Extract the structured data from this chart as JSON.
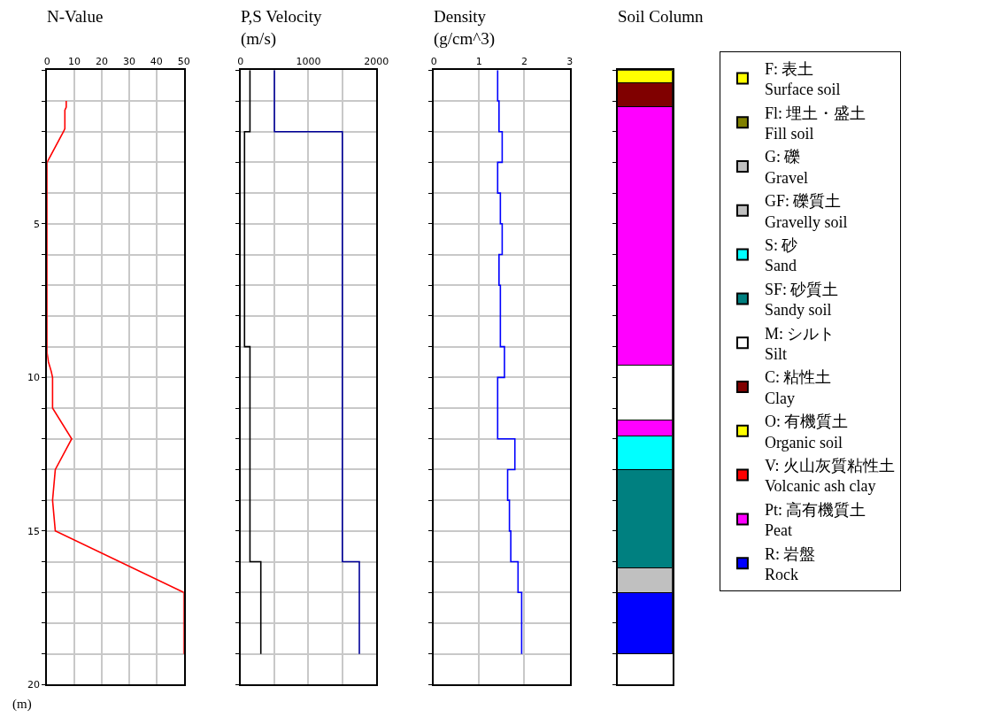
{
  "chart_data": [
    {
      "type": "line",
      "title": "N-Value",
      "ylabel": "(m)",
      "orientation": "horizontal",
      "xlim": [
        0,
        50
      ],
      "xticks": [
        0,
        10,
        20,
        30,
        40,
        50
      ],
      "ylim": [
        20,
        0
      ],
      "yticks": [
        {
          "value": 0,
          "label": null
        },
        {
          "value": 1,
          "label": null
        },
        {
          "value": 2,
          "label": null
        },
        {
          "value": 3,
          "label": null
        },
        {
          "value": 4,
          "label": null
        },
        5,
        {
          "value": 6,
          "label": null
        },
        {
          "value": 7,
          "label": null
        },
        {
          "value": 8,
          "label": null
        },
        {
          "value": 9,
          "label": null
        },
        10,
        {
          "value": 11,
          "label": null
        },
        {
          "value": 12,
          "label": null
        },
        {
          "value": 13,
          "label": null
        },
        {
          "value": 14,
          "label": null
        },
        15,
        {
          "value": 16,
          "label": null
        },
        {
          "value": 17,
          "label": null
        },
        {
          "value": 18,
          "label": null
        },
        {
          "value": 19,
          "label": null
        },
        20
      ],
      "grid": true,
      "series": [
        {
          "color": "#ff0000",
          "x": [
            1,
            1.2,
            1.3,
            1.9,
            2,
            3,
            9.2,
            9.5,
            9.8,
            10,
            11,
            12,
            13,
            14,
            15,
            17,
            19
          ],
          "values": [
            7,
            7,
            6.5,
            6.5,
            6,
            0,
            0,
            0.5,
            1.5,
            2,
            2,
            9,
            3,
            2,
            3,
            50,
            50
          ]
        }
      ]
    },
    {
      "type": "step",
      "title": "P,S Velocity\n(m/s)",
      "orientation": "horizontal",
      "xlim": [
        0,
        2000
      ],
      "xticks": [
        0,
        {
          "value": 500,
          "label": null
        },
        1000,
        {
          "value": 1500,
          "label": null
        },
        2000
      ],
      "ylim": [
        20,
        0
      ],
      "yticks": [
        {
          "value": 0,
          "label": null
        },
        {
          "value": 1,
          "label": null
        },
        {
          "value": 2,
          "label": null
        },
        {
          "value": 3,
          "label": null
        },
        {
          "value": 4,
          "label": null
        },
        {
          "value": 5,
          "label": null
        },
        {
          "value": 6,
          "label": null
        },
        {
          "value": 7,
          "label": null
        },
        {
          "value": 8,
          "label": null
        },
        {
          "value": 9,
          "label": null
        },
        {
          "value": 10,
          "label": null
        },
        {
          "value": 11,
          "label": null
        },
        {
          "value": 12,
          "label": null
        },
        {
          "value": 13,
          "label": null
        },
        {
          "value": 14,
          "label": null
        },
        {
          "value": 15,
          "label": null
        },
        {
          "value": 16,
          "label": null
        },
        {
          "value": 17,
          "label": null
        },
        {
          "value": 18,
          "label": null
        },
        {
          "value": 19,
          "label": null
        },
        {
          "value": 20,
          "label": null
        }
      ],
      "grid": true,
      "tick_labels": "x",
      "series": [
        {
          "color": "#000000",
          "x": [
            0,
            2,
            9,
            16,
            19
          ],
          "values": [
            140,
            60,
            140,
            300,
            300
          ]
        },
        {
          "color": "#000099",
          "x": [
            0,
            2,
            16,
            19
          ],
          "values": [
            500,
            1500,
            1750,
            1750
          ]
        }
      ]
    },
    {
      "type": "step",
      "title": "Density\n(g/cm^3)",
      "orientation": "horizontal",
      "xlim": [
        0,
        3
      ],
      "xticks": [
        0,
        1,
        2,
        3
      ],
      "ylim": [
        20,
        0
      ],
      "yticks": [
        {
          "value": 0,
          "label": null
        },
        {
          "value": 1,
          "label": null
        },
        {
          "value": 2,
          "label": null
        },
        {
          "value": 3,
          "label": null
        },
        {
          "value": 4,
          "label": null
        },
        {
          "value": 5,
          "label": null
        },
        {
          "value": 6,
          "label": null
        },
        {
          "value": 7,
          "label": null
        },
        {
          "value": 8,
          "label": null
        },
        {
          "value": 9,
          "label": null
        },
        {
          "value": 10,
          "label": null
        },
        {
          "value": 11,
          "label": null
        },
        {
          "value": 12,
          "label": null
        },
        {
          "value": 13,
          "label": null
        },
        {
          "value": 14,
          "label": null
        },
        {
          "value": 15,
          "label": null
        },
        {
          "value": 16,
          "label": null
        },
        {
          "value": 17,
          "label": null
        },
        {
          "value": 18,
          "label": null
        },
        {
          "value": 19,
          "label": null
        },
        {
          "value": 20,
          "label": null
        }
      ],
      "grid": true,
      "tick_labels": "x",
      "series": [
        {
          "color": "#0000ff",
          "x": [
            0,
            1,
            2,
            3,
            4,
            5,
            6,
            7,
            8,
            9,
            10,
            12,
            13,
            14,
            15,
            16,
            17,
            19
          ],
          "values": [
            1.41,
            1.44,
            1.51,
            1.41,
            1.47,
            1.51,
            1.44,
            1.47,
            1.47,
            1.56,
            1.41,
            1.79,
            1.63,
            1.67,
            1.7,
            1.86,
            1.94,
            1.94
          ]
        }
      ]
    },
    {
      "type": "bar",
      "title": "Soil Column",
      "stacked": true,
      "categories": [
        null
      ],
      "ylim": [
        20,
        0
      ],
      "yticks": [
        {
          "value": 0,
          "label": null
        },
        {
          "value": 1,
          "label": null
        },
        {
          "value": 2,
          "label": null
        },
        {
          "value": 3,
          "label": null
        },
        {
          "value": 4,
          "label": null
        },
        {
          "value": 5,
          "label": null
        },
        {
          "value": 6,
          "label": null
        },
        {
          "value": 7,
          "label": null
        },
        {
          "value": 8,
          "label": null
        },
        {
          "value": 9,
          "label": null
        },
        {
          "value": 10,
          "label": null
        },
        {
          "value": 11,
          "label": null
        },
        {
          "value": 12,
          "label": null
        },
        {
          "value": 13,
          "label": null
        },
        {
          "value": 14,
          "label": null
        },
        {
          "value": 15,
          "label": null
        },
        {
          "value": 16,
          "label": null
        },
        {
          "value": 17,
          "label": null
        },
        {
          "value": 18,
          "label": null
        },
        {
          "value": 19,
          "label": null
        },
        {
          "value": 20,
          "label": null
        }
      ],
      "tick_labels": false,
      "series": [
        {
          "color": "#ffff00",
          "values": [
            0.4
          ]
        },
        {
          "color": "#800000",
          "values": [
            0.8
          ]
        },
        {
          "color": "#ff00ff",
          "values": [
            8.4
          ]
        },
        {
          "color": "#ffffff",
          "values": [
            1.8
          ]
        },
        {
          "color": "#ff00ff",
          "values": [
            0.5
          ]
        },
        {
          "color": "#00ffff",
          "values": [
            1.1
          ]
        },
        {
          "color": "#008080",
          "values": [
            3.2
          ]
        },
        {
          "color": "#c0c0c0",
          "values": [
            0.8
          ]
        },
        {
          "color": "#0000ff",
          "values": [
            2
          ]
        }
      ]
    },
    {
      "type": "other",
      "categories": [
        "F: 表土\nSurface soil",
        "Fl: 埋土・盛土\nFill soil",
        "G: 礫\nGravel",
        "GF: 礫質土\nGravelly soil",
        "S: 砂\nSand",
        "SF: 砂質土\nSandy soil",
        "M: シルト\nSilt",
        "C: 粘性土\nClay",
        "O: 有機質土\nOrganic soil",
        "V: 火山灰質粘性土\nVolcanic ash clay",
        "Pt: 高有機質土\nPeat",
        "R: 岩盤\nRock"
      ],
      "colors": [
        "#ffff00",
        "#808000",
        "#c0c0c0",
        "#c0c0c0",
        "#00ffff",
        "#008080",
        "#ffffff",
        "#800000",
        "#ffff00",
        "#ff0000",
        "#ff00ff",
        "#0000ff"
      ]
    }
  ]
}
